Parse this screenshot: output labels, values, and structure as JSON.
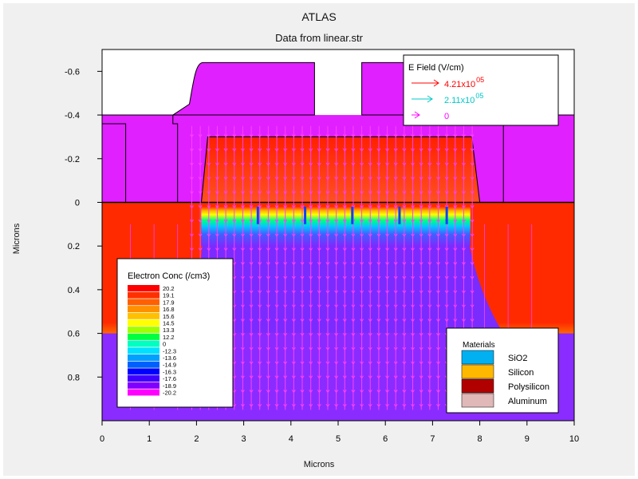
{
  "chart_data": {
    "type": "heatmap",
    "title": "ATLAS",
    "subtitle": "Data from linear.str",
    "xlabel": "Microns",
    "ylabel": "Microns",
    "xlim": [
      0,
      10
    ],
    "ylim": [
      -0.7,
      1.0
    ],
    "y_inverted": true,
    "x_ticks": [
      "0",
      "1",
      "2",
      "3",
      "4",
      "5",
      "6",
      "7",
      "8",
      "9",
      "10"
    ],
    "y_ticks": [
      {
        "v": -0.6,
        "label": "-0.6"
      },
      {
        "v": -0.4,
        "label": "-0.4"
      },
      {
        "v": -0.2,
        "label": "-0.2"
      },
      {
        "v": 0,
        "label": "0"
      },
      {
        "v": 0.2,
        "label": "0.2"
      },
      {
        "v": 0.4,
        "label": "0.4"
      },
      {
        "v": 0.6,
        "label": "0.6"
      },
      {
        "v": 0.8,
        "label": "0.8"
      }
    ],
    "efield_legend": {
      "title": "E Field (V/cm)",
      "entries": [
        {
          "mantissa": "4.21x10",
          "exp": "05",
          "color": "#ff0000"
        },
        {
          "mantissa": "2.11x10",
          "exp": "05",
          "color": "#00c8c8"
        },
        {
          "mantissa": "0",
          "exp": "",
          "color": "#ff00ff"
        }
      ]
    },
    "conc_legend": {
      "title": "Electron Conc (/cm3)",
      "levels": [
        {
          "label": "20.2",
          "color": "#ff0000"
        },
        {
          "label": "19.1",
          "color": "#ff3000"
        },
        {
          "label": "17.9",
          "color": "#ff6000"
        },
        {
          "label": "16.8",
          "color": "#ff9000"
        },
        {
          "label": "15.6",
          "color": "#ffc000"
        },
        {
          "label": "14.5",
          "color": "#ffff00"
        },
        {
          "label": "13.3",
          "color": "#a0ff00"
        },
        {
          "label": "12.2",
          "color": "#00ff40"
        },
        {
          "label": "0",
          "color": "#00ffc0"
        },
        {
          "label": "-12.3",
          "color": "#00e0ff"
        },
        {
          "label": "-13.6",
          "color": "#00a0ff"
        },
        {
          "label": "-14.9",
          "color": "#0060ff"
        },
        {
          "label": "-16.3",
          "color": "#0000ff"
        },
        {
          "label": "-17.6",
          "color": "#4000ff"
        },
        {
          "label": "-18.9",
          "color": "#8000ff"
        },
        {
          "label": "-20.2",
          "color": "#ff00ff"
        }
      ]
    },
    "materials_legend": {
      "title": "Materials",
      "entries": [
        {
          "label": "SiO2",
          "color": "#00b0f0"
        },
        {
          "label": "Silicon",
          "color": "#ffb800"
        },
        {
          "label": "Polysilicon",
          "color": "#b00000"
        },
        {
          "label": "Aluminum",
          "color": "#e0b8b8"
        }
      ]
    },
    "regions": [
      {
        "name": "gate-oxide",
        "x": [
          0,
          10
        ],
        "y": [
          -0.4,
          0
        ]
      },
      {
        "name": "left-step",
        "x": [
          0,
          0.5
        ],
        "y": [
          -0.36,
          0
        ]
      },
      {
        "name": "gate-metal",
        "x": [
          2.0,
          4.5
        ],
        "y": [
          -0.64,
          -0.4
        ]
      },
      {
        "name": "gate-metal-right",
        "x": [
          5.5,
          10
        ],
        "y": [
          -0.64,
          -0.4
        ]
      },
      {
        "name": "polysilicon-gate",
        "x": [
          1.9,
          8.0
        ],
        "y": [
          -0.3,
          0
        ]
      },
      {
        "name": "substrate",
        "x": [
          0,
          10
        ],
        "y": [
          0,
          1.0
        ]
      }
    ],
    "grid": false
  }
}
